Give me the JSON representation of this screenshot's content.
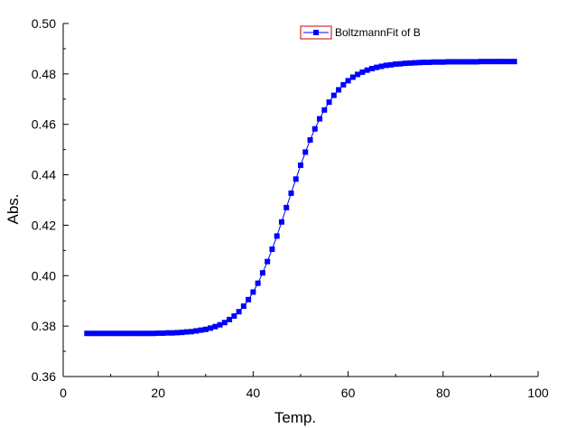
{
  "chart_data": {
    "type": "line",
    "title": "",
    "xlabel": "Temp.",
    "ylabel": "Abs.",
    "xlim": [
      0,
      100
    ],
    "ylim": [
      0.36,
      0.5
    ],
    "x_ticks": [
      0,
      20,
      40,
      60,
      80,
      100
    ],
    "x_tick_labels": [
      "0",
      "20",
      "40",
      "60",
      "80",
      "100"
    ],
    "y_ticks": [
      0.36,
      0.38,
      0.4,
      0.42,
      0.44,
      0.46,
      0.48,
      0.5
    ],
    "y_tick_labels": [
      "0.36",
      "0.38",
      "0.40",
      "0.42",
      "0.44",
      "0.46",
      "0.48",
      "0.50"
    ],
    "grid": false,
    "legend_position": "top-right",
    "series": [
      {
        "name": "BoltzmannFit of B",
        "color": "#0000FF",
        "marker": "square",
        "x": [
          5,
          6,
          7,
          8,
          9,
          10,
          11,
          12,
          13,
          14,
          15,
          16,
          17,
          18,
          19,
          20,
          21,
          22,
          23,
          24,
          25,
          26,
          27,
          28,
          29,
          30,
          31,
          32,
          33,
          34,
          35,
          36,
          37,
          38,
          39,
          40,
          41,
          42,
          43,
          44,
          45,
          46,
          47,
          48,
          49,
          50,
          51,
          52,
          53,
          54,
          55,
          56,
          57,
          58,
          59,
          60,
          61,
          62,
          63,
          64,
          65,
          66,
          67,
          68,
          69,
          70,
          71,
          72,
          73,
          74,
          75,
          76,
          77,
          78,
          79,
          80,
          81,
          82,
          83,
          84,
          85,
          86,
          87,
          88,
          89,
          90,
          91,
          92,
          93,
          94,
          95
        ],
        "y": [
          0.3771,
          0.3771,
          0.3771,
          0.3771,
          0.3771,
          0.3771,
          0.3771,
          0.3771,
          0.3771,
          0.3771,
          0.3771,
          0.3771,
          0.3771,
          0.3771,
          0.3771,
          0.3772,
          0.3772,
          0.3773,
          0.3773,
          0.3774,
          0.3775,
          0.3777,
          0.3778,
          0.3781,
          0.3784,
          0.3787,
          0.3792,
          0.3798,
          0.3805,
          0.3814,
          0.3826,
          0.384,
          0.3857,
          0.3879,
          0.3905,
          0.3935,
          0.397,
          0.4011,
          0.4056,
          0.4105,
          0.4157,
          0.4213,
          0.427,
          0.4327,
          0.4383,
          0.4438,
          0.449,
          0.4538,
          0.4582,
          0.4622,
          0.4657,
          0.4688,
          0.4715,
          0.4737,
          0.4757,
          0.4773,
          0.4787,
          0.4798,
          0.4807,
          0.4815,
          0.4821,
          0.4826,
          0.483,
          0.4834,
          0.4836,
          0.4839,
          0.484,
          0.4842,
          0.4843,
          0.4844,
          0.4845,
          0.4846,
          0.4846,
          0.4847,
          0.4847,
          0.4847,
          0.4848,
          0.4848,
          0.4848,
          0.4848,
          0.4848,
          0.4848,
          0.4848,
          0.4849,
          0.4849,
          0.4849,
          0.4849,
          0.4849,
          0.4849,
          0.4849,
          0.4849
        ]
      }
    ]
  }
}
